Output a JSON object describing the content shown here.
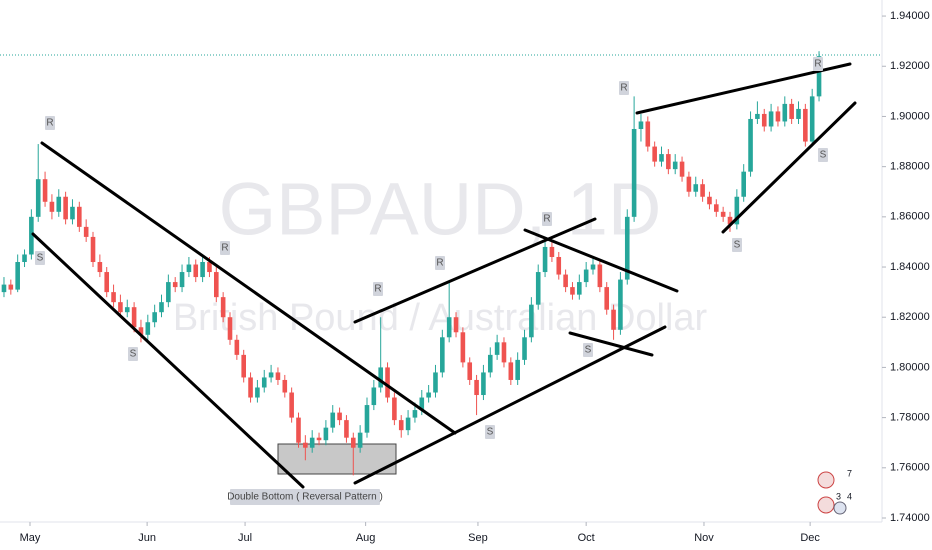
{
  "chart_data": {
    "type": "candlestick",
    "watermark_title": "GBPAUD, 1D",
    "watermark_subtitle": "British Pound / Australian Dollar",
    "up_color": "#26a69a",
    "down_color": "#ef5350",
    "xlim": [
      -0.58,
      127.9
    ],
    "ylim": [
      1.7392,
      1.9464
    ],
    "yticks": [
      {
        "value": 1.74,
        "label": "1.74000"
      },
      {
        "value": 1.76,
        "label": "1.76000"
      },
      {
        "value": 1.78,
        "label": "1.78000"
      },
      {
        "value": 1.8,
        "label": "1.80000"
      },
      {
        "value": 1.82,
        "label": "1.82000"
      },
      {
        "value": 1.84,
        "label": "1.84000"
      },
      {
        "value": 1.86,
        "label": "1.86000"
      },
      {
        "value": 1.88,
        "label": "1.88000"
      },
      {
        "value": 1.9,
        "label": "1.90000"
      },
      {
        "value": 1.92,
        "label": "1.92000"
      },
      {
        "value": 1.94,
        "label": "1.94000"
      }
    ],
    "xticks": [
      {
        "value": 3.8,
        "label": "May"
      },
      {
        "value": 20.9,
        "label": "Jun"
      },
      {
        "value": 35.2,
        "label": "Jul"
      },
      {
        "value": 52.8,
        "label": "Aug"
      },
      {
        "value": 69.2,
        "label": "Sep"
      },
      {
        "value": 85,
        "label": "Oct"
      },
      {
        "value": 102.2,
        "label": "Nov"
      },
      {
        "value": 117.7,
        "label": "Dec"
      }
    ],
    "last_price": 1.9245,
    "x": [
      0,
      1,
      2,
      3,
      4,
      5,
      6,
      7,
      8,
      9,
      10,
      11,
      12,
      13,
      14,
      15,
      16,
      17,
      18,
      19,
      20,
      21,
      22,
      23,
      24,
      25,
      26,
      27,
      28,
      29,
      30,
      31,
      32,
      33,
      34,
      35,
      36,
      37,
      38,
      39,
      40,
      41,
      42,
      43,
      44,
      45,
      46,
      47,
      48,
      49,
      50,
      51,
      52,
      53,
      54,
      55,
      56,
      57,
      58,
      59,
      60,
      61,
      62,
      63,
      64,
      65,
      66,
      67,
      68,
      69,
      70,
      71,
      72,
      73,
      74,
      75,
      76,
      77,
      78,
      79,
      80,
      81,
      82,
      83,
      84,
      85,
      86,
      87,
      88,
      89,
      90,
      91,
      92,
      93,
      94,
      95,
      96,
      97,
      98,
      99,
      100,
      101,
      102,
      103,
      104,
      105,
      106,
      107,
      108,
      109,
      110,
      111,
      112,
      113,
      114,
      115,
      116,
      117,
      118,
      119
    ],
    "ohlc": [
      [
        1.83,
        1.836,
        1.828,
        1.833
      ],
      [
        1.833,
        1.835,
        1.829,
        1.831
      ],
      [
        1.831,
        1.845,
        1.83,
        1.842
      ],
      [
        1.842,
        1.847,
        1.84,
        1.845
      ],
      [
        1.845,
        1.863,
        1.843,
        1.86
      ],
      [
        1.86,
        1.889,
        1.858,
        1.875
      ],
      [
        1.875,
        1.878,
        1.864,
        1.866
      ],
      [
        1.866,
        1.869,
        1.859,
        1.862
      ],
      [
        1.862,
        1.871,
        1.86,
        1.868
      ],
      [
        1.868,
        1.87,
        1.857,
        1.859
      ],
      [
        1.859,
        1.867,
        1.857,
        1.864
      ],
      [
        1.864,
        1.866,
        1.854,
        1.856
      ],
      [
        1.856,
        1.859,
        1.85,
        1.852
      ],
      [
        1.852,
        1.854,
        1.84,
        1.842
      ],
      [
        1.842,
        1.845,
        1.836,
        1.838
      ],
      [
        1.838,
        1.84,
        1.828,
        1.83
      ],
      [
        1.83,
        1.833,
        1.824,
        1.826
      ],
      [
        1.826,
        1.829,
        1.82,
        1.822
      ],
      [
        1.822,
        1.827,
        1.82,
        1.824
      ],
      [
        1.824,
        1.826,
        1.814,
        1.816
      ],
      [
        1.816,
        1.819,
        1.81,
        1.813
      ],
      [
        1.813,
        1.821,
        1.811,
        1.818
      ],
      [
        1.818,
        1.825,
        1.816,
        1.822
      ],
      [
        1.822,
        1.829,
        1.82,
        1.826
      ],
      [
        1.826,
        1.837,
        1.824,
        1.834
      ],
      [
        1.834,
        1.836,
        1.83,
        1.832
      ],
      [
        1.832,
        1.841,
        1.83,
        1.838
      ],
      [
        1.838,
        1.844,
        1.836,
        1.841
      ],
      [
        1.841,
        1.843,
        1.834,
        1.836
      ],
      [
        1.836,
        1.845,
        1.834,
        1.842
      ],
      [
        1.842,
        1.844,
        1.836,
        1.838
      ],
      [
        1.838,
        1.84,
        1.826,
        1.828
      ],
      [
        1.828,
        1.83,
        1.818,
        1.82
      ],
      [
        1.82,
        1.822,
        1.809,
        1.811
      ],
      [
        1.811,
        1.813,
        1.803,
        1.805
      ],
      [
        1.805,
        1.807,
        1.794,
        1.796
      ],
      [
        1.796,
        1.798,
        1.786,
        1.788
      ],
      [
        1.788,
        1.795,
        1.786,
        1.792
      ],
      [
        1.792,
        1.799,
        1.79,
        1.796
      ],
      [
        1.796,
        1.801,
        1.794,
        1.798
      ],
      [
        1.798,
        1.8,
        1.793,
        1.795
      ],
      [
        1.795,
        1.797,
        1.788,
        1.79
      ],
      [
        1.79,
        1.792,
        1.778,
        1.78
      ],
      [
        1.78,
        1.782,
        1.768,
        1.77
      ],
      [
        1.77,
        1.773,
        1.763,
        1.768
      ],
      [
        1.768,
        1.775,
        1.766,
        1.772
      ],
      [
        1.772,
        1.774,
        1.769,
        1.771
      ],
      [
        1.771,
        1.779,
        1.769,
        1.776
      ],
      [
        1.776,
        1.785,
        1.774,
        1.782
      ],
      [
        1.782,
        1.784,
        1.777,
        1.779
      ],
      [
        1.779,
        1.781,
        1.77,
        1.772
      ],
      [
        1.772,
        1.774,
        1.757,
        1.768
      ],
      [
        1.768,
        1.777,
        1.766,
        1.774
      ],
      [
        1.774,
        1.788,
        1.772,
        1.785
      ],
      [
        1.785,
        1.795,
        1.783,
        1.792
      ],
      [
        1.792,
        1.82,
        1.79,
        1.8
      ],
      [
        1.8,
        1.802,
        1.786,
        1.788
      ],
      [
        1.788,
        1.79,
        1.777,
        1.779
      ],
      [
        1.779,
        1.781,
        1.772,
        1.775
      ],
      [
        1.775,
        1.783,
        1.773,
        1.78
      ],
      [
        1.78,
        1.786,
        1.778,
        1.783
      ],
      [
        1.783,
        1.791,
        1.781,
        1.788
      ],
      [
        1.788,
        1.793,
        1.786,
        1.79
      ],
      [
        1.79,
        1.801,
        1.788,
        1.798
      ],
      [
        1.798,
        1.815,
        1.796,
        1.812
      ],
      [
        1.812,
        1.834,
        1.81,
        1.82
      ],
      [
        1.82,
        1.822,
        1.812,
        1.814
      ],
      [
        1.814,
        1.816,
        1.8,
        1.802
      ],
      [
        1.802,
        1.804,
        1.793,
        1.795
      ],
      [
        1.795,
        1.797,
        1.781,
        1.789
      ],
      [
        1.789,
        1.801,
        1.787,
        1.798
      ],
      [
        1.798,
        1.808,
        1.796,
        1.805
      ],
      [
        1.805,
        1.813,
        1.803,
        1.81
      ],
      [
        1.81,
        1.812,
        1.8,
        1.802
      ],
      [
        1.802,
        1.804,
        1.793,
        1.795
      ],
      [
        1.795,
        1.806,
        1.793,
        1.803
      ],
      [
        1.803,
        1.815,
        1.801,
        1.812
      ],
      [
        1.812,
        1.828,
        1.81,
        1.825
      ],
      [
        1.825,
        1.841,
        1.823,
        1.838
      ],
      [
        1.838,
        1.852,
        1.836,
        1.848
      ],
      [
        1.848,
        1.85,
        1.842,
        1.844
      ],
      [
        1.844,
        1.846,
        1.835,
        1.837
      ],
      [
        1.837,
        1.839,
        1.83,
        1.832
      ],
      [
        1.832,
        1.834,
        1.827,
        1.829
      ],
      [
        1.829,
        1.837,
        1.827,
        1.834
      ],
      [
        1.834,
        1.842,
        1.832,
        1.839
      ],
      [
        1.839,
        1.844,
        1.837,
        1.841
      ],
      [
        1.841,
        1.843,
        1.83,
        1.832
      ],
      [
        1.832,
        1.834,
        1.821,
        1.823
      ],
      [
        1.823,
        1.825,
        1.811,
        1.815
      ],
      [
        1.815,
        1.838,
        1.813,
        1.835
      ],
      [
        1.835,
        1.863,
        1.833,
        1.86
      ],
      [
        1.86,
        1.908,
        1.858,
        1.895
      ],
      [
        1.895,
        1.901,
        1.89,
        1.898
      ],
      [
        1.898,
        1.9,
        1.886,
        1.888
      ],
      [
        1.888,
        1.89,
        1.88,
        1.882
      ],
      [
        1.882,
        1.888,
        1.88,
        1.885
      ],
      [
        1.885,
        1.887,
        1.877,
        1.879
      ],
      [
        1.879,
        1.885,
        1.877,
        1.882
      ],
      [
        1.882,
        1.884,
        1.874,
        1.876
      ],
      [
        1.876,
        1.878,
        1.868,
        1.87
      ],
      [
        1.87,
        1.876,
        1.868,
        1.873
      ],
      [
        1.873,
        1.875,
        1.866,
        1.868
      ],
      [
        1.868,
        1.87,
        1.863,
        1.865
      ],
      [
        1.865,
        1.867,
        1.86,
        1.862
      ],
      [
        1.862,
        1.864,
        1.858,
        1.86
      ],
      [
        1.86,
        1.862,
        1.854,
        1.857
      ],
      [
        1.857,
        1.871,
        1.855,
        1.868
      ],
      [
        1.868,
        1.881,
        1.866,
        1.878
      ],
      [
        1.878,
        1.902,
        1.876,
        1.899
      ],
      [
        1.899,
        1.906,
        1.897,
        1.901
      ],
      [
        1.901,
        1.903,
        1.894,
        1.896
      ],
      [
        1.896,
        1.905,
        1.894,
        1.902
      ],
      [
        1.902,
        1.904,
        1.896,
        1.898
      ],
      [
        1.898,
        1.908,
        1.896,
        1.905
      ],
      [
        1.905,
        1.907,
        1.897,
        1.899
      ],
      [
        1.899,
        1.906,
        1.897,
        1.903
      ],
      [
        1.903,
        1.905,
        1.888,
        1.89
      ],
      [
        1.89,
        1.911,
        1.888,
        1.908
      ],
      [
        1.908,
        1.926,
        1.906,
        1.924
      ]
    ],
    "sr_labels": [
      "R",
      "S",
      "S",
      "R",
      "R",
      "R",
      "S",
      "R",
      "S",
      "R",
      "S",
      "R",
      "S"
    ],
    "pattern_label": "Double Bottom ( Reversal Pattern )",
    "badges": [
      "7",
      "3",
      "4"
    ]
  }
}
